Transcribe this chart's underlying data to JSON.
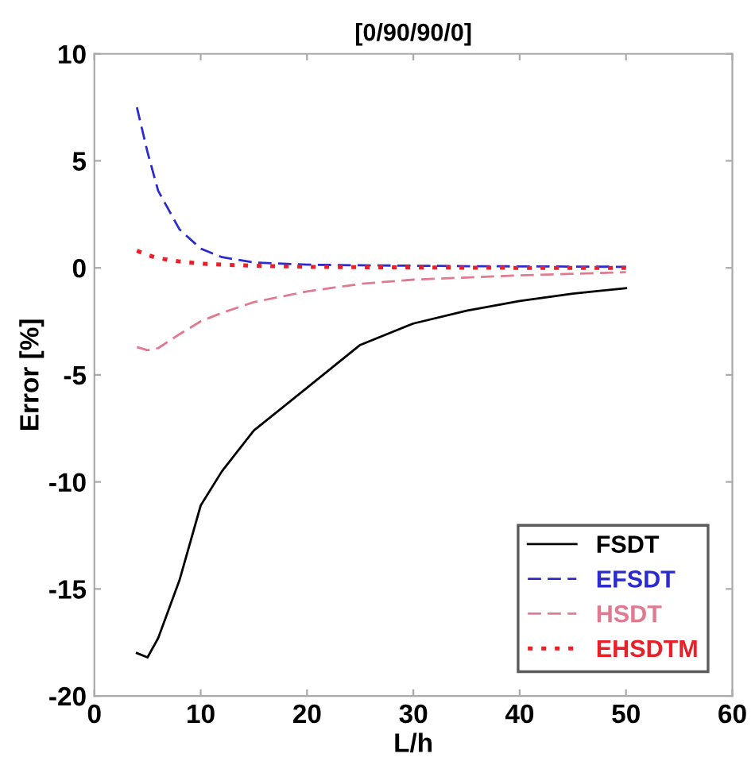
{
  "chart_data": {
    "type": "line",
    "title": "[0/90/90/0]",
    "xlabel": "L/h",
    "ylabel": "Error [%]",
    "xlim": [
      0,
      60
    ],
    "xticks": [
      0,
      10,
      20,
      30,
      40,
      50,
      60
    ],
    "ylim": [
      -20,
      10
    ],
    "yticks": [
      -20,
      -15,
      -10,
      -5,
      0,
      5,
      10
    ],
    "grid": false,
    "legend": "bottom right",
    "marker": "none",
    "x": [
      4,
      5,
      6,
      8,
      10,
      12,
      15,
      20,
      25,
      30,
      35,
      40,
      45,
      50
    ],
    "series": [
      {
        "name": "FSDT",
        "color": "#000000",
        "line_style": "solid",
        "values": [
          -18.0,
          -18.2,
          -17.3,
          -14.6,
          -11.1,
          -9.5,
          -7.6,
          -5.6,
          -3.6,
          -2.6,
          -2.0,
          -1.55,
          -1.2,
          -0.95
        ]
      },
      {
        "name": "EFSDT",
        "color": "#2b2bd0",
        "line_style": "dashed",
        "values": [
          7.5,
          5.4,
          3.6,
          1.8,
          0.9,
          0.5,
          0.25,
          0.15,
          0.12,
          0.1,
          0.08,
          0.07,
          0.06,
          0.05
        ]
      },
      {
        "name": "HSDT",
        "color": "#e07a90",
        "line_style": "dashed",
        "values": [
          -3.7,
          -3.85,
          -3.75,
          -3.1,
          -2.5,
          -2.1,
          -1.6,
          -1.1,
          -0.75,
          -0.55,
          -0.45,
          -0.35,
          -0.28,
          -0.2
        ]
      },
      {
        "name": "EHSDTM",
        "color": "#e8202a",
        "line_style": "dotted",
        "values": [
          0.8,
          0.6,
          0.45,
          0.3,
          0.2,
          0.15,
          0.1,
          0.05,
          0.03,
          0.02,
          0.01,
          0.0,
          0.0,
          0.0
        ]
      }
    ]
  }
}
